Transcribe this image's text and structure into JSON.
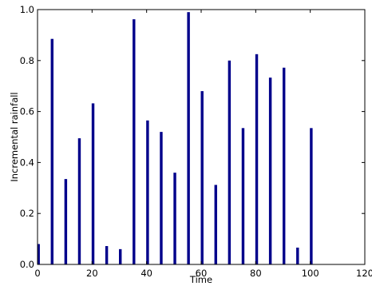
{
  "chart_data": {
    "type": "bar",
    "xlabel": "Time",
    "ylabel": "Incremental rainfall",
    "xlim": [
      0,
      120
    ],
    "ylim": [
      0,
      1.0
    ],
    "xticks": [
      0,
      20,
      40,
      60,
      80,
      100,
      120
    ],
    "yticks": [
      0.0,
      0.2,
      0.4,
      0.6,
      0.8,
      1.0
    ],
    "xtick_labels": [
      "0",
      "20",
      "40",
      "60",
      "80",
      "100",
      "120"
    ],
    "ytick_labels": [
      "0.0",
      "0.2",
      "0.4",
      "0.6",
      "0.8",
      "1.0"
    ],
    "grid": false,
    "bar_color": "#00008b",
    "bar_width": 1,
    "x": [
      0,
      5,
      10,
      15,
      20,
      25,
      30,
      35,
      40,
      45,
      50,
      55,
      60,
      65,
      70,
      75,
      80,
      85,
      90,
      95,
      100
    ],
    "values": [
      0.08,
      0.885,
      0.335,
      0.495,
      0.632,
      0.072,
      0.06,
      0.962,
      0.565,
      0.52,
      0.36,
      0.99,
      0.68,
      0.312,
      0.8,
      0.535,
      0.825,
      0.733,
      0.772,
      0.066,
      0.535
    ]
  }
}
